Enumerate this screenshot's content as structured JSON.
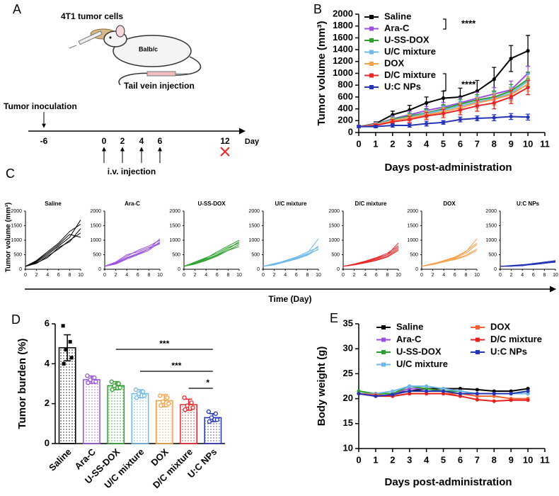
{
  "panel_labels": [
    "A",
    "B",
    "C",
    "D",
    "E"
  ],
  "schematic": {
    "cells_label": "4T1 tumor cells",
    "mouse_label": "Balb/c",
    "injection_label": "Tail vein injection",
    "inoculation_label": "Tumor inoculation",
    "timeline": [
      "-6",
      "0",
      "2",
      "4",
      "6",
      "12"
    ],
    "unit": "Day",
    "treatment_label": "i.v. injection"
  },
  "chart_data": [
    {
      "type": "line",
      "ylabel": "Tumor volume (mm³)",
      "xlabel": "Days post-administration",
      "x": [
        0,
        1,
        2,
        3,
        4,
        5,
        6,
        7,
        8,
        9,
        10
      ],
      "xlim": [
        0,
        11
      ],
      "ylim": [
        0,
        2000
      ],
      "xticks": [
        0,
        1,
        2,
        3,
        4,
        5,
        6,
        7,
        8,
        9,
        10,
        11
      ],
      "yticks": [
        0,
        200,
        400,
        600,
        800,
        1000,
        1200,
        1400,
        1600,
        1800,
        2000
      ],
      "annotations": [
        "****",
        "****"
      ],
      "series": [
        {
          "name": "Saline",
          "color": "#000000",
          "values": [
            100,
            150,
            300,
            380,
            500,
            580,
            600,
            700,
            900,
            1250,
            1380
          ],
          "errors": [
            20,
            30,
            60,
            80,
            100,
            120,
            150,
            180,
            200,
            220,
            260
          ]
        },
        {
          "name": "Ara-C",
          "color": "#9b4fe0",
          "values": [
            100,
            140,
            230,
            300,
            370,
            430,
            500,
            580,
            650,
            720,
            1000
          ],
          "errors": [
            20,
            30,
            50,
            60,
            70,
            80,
            90,
            100,
            110,
            150,
            120
          ]
        },
        {
          "name": "U-SS-DOX",
          "color": "#2ca02c",
          "values": [
            100,
            140,
            220,
            280,
            330,
            400,
            480,
            550,
            600,
            700,
            900
          ],
          "errors": [
            20,
            25,
            40,
            50,
            60,
            70,
            80,
            90,
            100,
            110,
            120
          ]
        },
        {
          "name": "U/C mixture",
          "color": "#6fb8e8",
          "values": [
            100,
            140,
            210,
            260,
            320,
            380,
            450,
            520,
            580,
            660,
            870
          ],
          "errors": [
            20,
            25,
            40,
            50,
            60,
            70,
            80,
            90,
            100,
            110,
            120
          ]
        },
        {
          "name": "DOX",
          "color": "#f5a04a",
          "values": [
            100,
            130,
            200,
            250,
            300,
            350,
            420,
            500,
            560,
            640,
            820
          ],
          "errors": [
            20,
            25,
            40,
            50,
            60,
            70,
            80,
            90,
            100,
            110,
            120
          ]
        },
        {
          "name": "D/C mixture",
          "color": "#e8262a",
          "values": [
            100,
            120,
            180,
            220,
            280,
            320,
            380,
            450,
            500,
            600,
            760
          ],
          "errors": [
            20,
            25,
            40,
            50,
            60,
            70,
            80,
            90,
            100,
            110,
            120
          ]
        },
        {
          "name": "U:C NPs",
          "color": "#2634b8",
          "values": [
            100,
            100,
            120,
            120,
            150,
            170,
            220,
            240,
            250,
            270,
            260
          ],
          "errors": [
            20,
            20,
            30,
            30,
            40,
            30,
            40,
            40,
            50,
            50,
            50
          ]
        }
      ]
    },
    {
      "type": "small_multiples",
      "ylabel": "Tumor volume (mm³)",
      "xlabel": "Time (Day)",
      "x": [
        0,
        2,
        4,
        6,
        8,
        10
      ],
      "xlim": [
        0,
        10
      ],
      "ylim": [
        0,
        2000
      ],
      "xticks": [
        0,
        2,
        4,
        6,
        8,
        10
      ],
      "yticks": [
        0,
        500,
        1000,
        1500,
        2000
      ],
      "panels": [
        {
          "title": "Saline",
          "color": "#000000",
          "lines": [
            [
              100,
              250,
              500,
              800,
              1100,
              1700
            ],
            [
              100,
              300,
              600,
              900,
              1300,
              1550
            ],
            [
              100,
              200,
              450,
              700,
              1000,
              1250
            ],
            [
              100,
              280,
              550,
              850,
              1200,
              1100
            ],
            [
              100,
              220,
              400,
              750,
              950,
              1400
            ]
          ]
        },
        {
          "title": "Ara-C",
          "color": "#9b4fe0",
          "lines": [
            [
              100,
              200,
              400,
              550,
              700,
              1050
            ],
            [
              100,
              250,
              500,
              600,
              750,
              900
            ],
            [
              100,
              180,
              350,
              500,
              650,
              950
            ],
            [
              100,
              220,
              450,
              650,
              800,
              1000
            ],
            [
              100,
              200,
              380,
              520,
              700,
              880
            ]
          ]
        },
        {
          "title": "U-SS-DOX",
          "color": "#2ca02c",
          "lines": [
            [
              100,
              200,
              350,
              500,
              700,
              950
            ],
            [
              100,
              250,
              400,
              550,
              750,
              900
            ],
            [
              100,
              180,
              300,
              450,
              650,
              850
            ],
            [
              100,
              220,
              380,
              600,
              800,
              1000
            ],
            [
              100,
              200,
              320,
              480,
              650,
              780
            ]
          ]
        },
        {
          "title": "U/C mixture",
          "color": "#6fb8e8",
          "lines": [
            [
              100,
              180,
              300,
              400,
              550,
              1050
            ],
            [
              100,
              200,
              280,
              380,
              500,
              800
            ],
            [
              100,
              150,
              250,
              350,
              480,
              700
            ],
            [
              100,
              170,
              300,
              420,
              600,
              750
            ],
            [
              100,
              160,
              260,
              360,
              520,
              680
            ]
          ]
        },
        {
          "title": "D/C  mixture",
          "color": "#e8262a",
          "lines": [
            [
              100,
              150,
              250,
              350,
              500,
              900
            ],
            [
              100,
              180,
              280,
              400,
              550,
              800
            ],
            [
              100,
              160,
              230,
              320,
              450,
              700
            ],
            [
              100,
              170,
              260,
              380,
              500,
              750
            ],
            [
              100,
              150,
              220,
              300,
              420,
              650
            ]
          ]
        },
        {
          "title": "DOX",
          "color": "#f5a04a",
          "lines": [
            [
              100,
              180,
              300,
              400,
              600,
              1050
            ],
            [
              100,
              200,
              280,
              380,
              550,
              850
            ],
            [
              100,
              160,
              250,
              350,
              480,
              700
            ],
            [
              100,
              170,
              260,
              330,
              450,
              650
            ],
            [
              100,
              180,
              300,
              420,
              620,
              900
            ]
          ]
        },
        {
          "title": "U:C NPs",
          "color": "#2634b8",
          "lines": [
            [
              100,
              120,
              150,
              200,
              250,
              300
            ],
            [
              100,
              100,
              130,
              180,
              220,
              280
            ],
            [
              100,
              110,
              140,
              160,
              200,
              250
            ],
            [
              100,
              130,
              160,
              190,
              230,
              260
            ],
            [
              100,
              110,
              120,
              170,
              210,
              240
            ]
          ]
        }
      ]
    },
    {
      "type": "bar",
      "ylabel": "Tumor burden (%)",
      "categories": [
        "Saline",
        "Ara-C",
        "U-SS-DOX",
        "U/C mixture",
        "DOX",
        "D/C mixture",
        "U:C NPs"
      ],
      "values": [
        4.8,
        3.2,
        2.9,
        2.5,
        2.15,
        1.95,
        1.3
      ],
      "errors": [
        0.65,
        0.18,
        0.2,
        0.2,
        0.3,
        0.28,
        0.2
      ],
      "colors": [
        "#000000",
        "#9b4fe0",
        "#2ca02c",
        "#6fb8e8",
        "#f5a04a",
        "#e8262a",
        "#2634b8"
      ],
      "points": [
        [
          5.9,
          5.1,
          4.7,
          4.3,
          4.0
        ],
        [
          3.4,
          3.3,
          3.2,
          3.1,
          3.05
        ],
        [
          3.1,
          3.0,
          2.9,
          2.8,
          2.7
        ],
        [
          2.7,
          2.6,
          2.5,
          2.4,
          2.3
        ],
        [
          2.4,
          2.3,
          2.1,
          2.0,
          1.9
        ],
        [
          2.3,
          2.05,
          1.9,
          1.8,
          1.7
        ],
        [
          1.6,
          1.5,
          1.3,
          1.2,
          1.1
        ]
      ],
      "ylim": [
        0,
        6
      ],
      "yticks": [
        0,
        2,
        4,
        6
      ],
      "annotations": [
        "***",
        "***",
        "*"
      ]
    },
    {
      "type": "line",
      "ylabel": "Body weight (g)",
      "xlabel": "Days post-administration",
      "x": [
        0,
        1,
        2,
        3,
        4,
        5,
        6,
        7,
        8,
        9,
        10
      ],
      "xlim": [
        0,
        11
      ],
      "ylim": [
        10,
        35
      ],
      "xticks": [
        0,
        1,
        2,
        3,
        4,
        5,
        6,
        7,
        8,
        9,
        10,
        11
      ],
      "yticks": [
        10,
        15,
        20,
        25,
        30,
        35
      ],
      "series": [
        {
          "name": "Saline",
          "color": "#000000",
          "values": [
            21,
            21,
            21,
            21.5,
            22,
            22,
            22,
            21.8,
            21.5,
            21.5,
            22
          ]
        },
        {
          "name": "Ara-C",
          "color": "#9b4fe0",
          "values": [
            21,
            21,
            21,
            22,
            22,
            21.5,
            21.5,
            21,
            21,
            21,
            21
          ]
        },
        {
          "name": "U-SS-DOX",
          "color": "#2ca02c",
          "values": [
            21.5,
            21,
            21,
            22.5,
            22,
            21.5,
            21.5,
            21,
            21,
            21,
            21.5
          ]
        },
        {
          "name": "U/C mixture",
          "color": "#6fb8e8",
          "values": [
            21,
            21,
            21.5,
            22.5,
            22.5,
            22,
            21.5,
            21,
            21,
            21,
            21
          ]
        },
        {
          "name": "DOX",
          "color": "#f06030",
          "values": [
            21,
            20.8,
            20.5,
            21,
            21,
            21,
            21,
            20.5,
            20.5,
            20,
            20
          ]
        },
        {
          "name": "D/C mixture",
          "color": "#e82020",
          "values": [
            21,
            20.5,
            20.5,
            21,
            21,
            21,
            20.5,
            19.8,
            19.5,
            19.7,
            19.7
          ]
        },
        {
          "name": "U:C NPs",
          "color": "#2634b8",
          "values": [
            21,
            20.5,
            20.8,
            21.5,
            21.5,
            21.5,
            21,
            21,
            21,
            21,
            21.5
          ]
        }
      ]
    }
  ]
}
